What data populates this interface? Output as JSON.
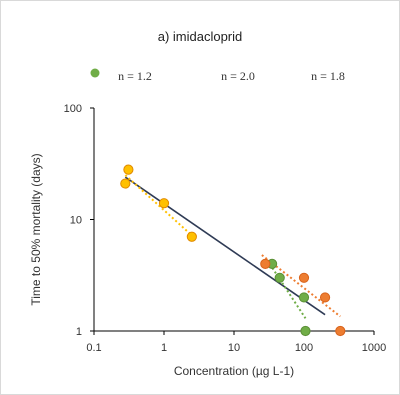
{
  "chart_data": {
    "type": "scatter",
    "title": "a)    imidacloprid",
    "xlabel": "Concentration (µg L-1)",
    "ylabel": "Time to 50% mortality (days)",
    "x_scale": "log",
    "y_scale": "log",
    "xlim": [
      0.1,
      1000
    ],
    "ylim": [
      1,
      100
    ],
    "x_ticks": [
      {
        "value": 0.1,
        "label": "0.1"
      },
      {
        "value": 1,
        "label": "1"
      },
      {
        "value": 10,
        "label": "10"
      },
      {
        "value": 100,
        "label": "100"
      },
      {
        "value": 1000,
        "label": "1000"
      }
    ],
    "y_ticks": [
      {
        "value": 1,
        "label": "1"
      },
      {
        "value": 10,
        "label": "10"
      },
      {
        "value": 100,
        "label": "100"
      }
    ],
    "grid": false,
    "annotations": [
      {
        "text": "n = 1.2",
        "color": "#f5b800"
      },
      {
        "text": "n = 2.0",
        "color": "#6aaa3a"
      },
      {
        "text": "n = 1.8",
        "color": "#ef7d22"
      }
    ],
    "series": [
      {
        "color": "#ffc000",
        "edge": "#e08a00",
        "points": [
          [
            0.28,
            21
          ],
          [
            0.31,
            28
          ],
          [
            1.0,
            14
          ],
          [
            2.5,
            7
          ]
        ],
        "trend": [
          [
            0.28,
            25
          ],
          [
            2.5,
            7.2
          ]
        ]
      },
      {
        "color": "#70ad47",
        "edge": "#5a8f36",
        "points": [
          [
            35,
            4
          ],
          [
            45,
            3
          ],
          [
            100,
            2
          ],
          [
            105,
            1
          ]
        ],
        "trend": [
          [
            30,
            4.3
          ],
          [
            105,
            1.3
          ]
        ]
      },
      {
        "color": "#ed7d31",
        "edge": "#d8621a",
        "points": [
          [
            28,
            4
          ],
          [
            100,
            3
          ],
          [
            200,
            2
          ],
          [
            330,
            1
          ]
        ],
        "trend": [
          [
            25,
            4.8
          ],
          [
            330,
            1.35
          ]
        ]
      }
    ],
    "overall_trend": {
      "color": "#2f3b55",
      "points": [
        [
          0.28,
          24
        ],
        [
          200,
          1.4
        ]
      ]
    },
    "stray_marker": {
      "color": "#70ad47"
    }
  }
}
